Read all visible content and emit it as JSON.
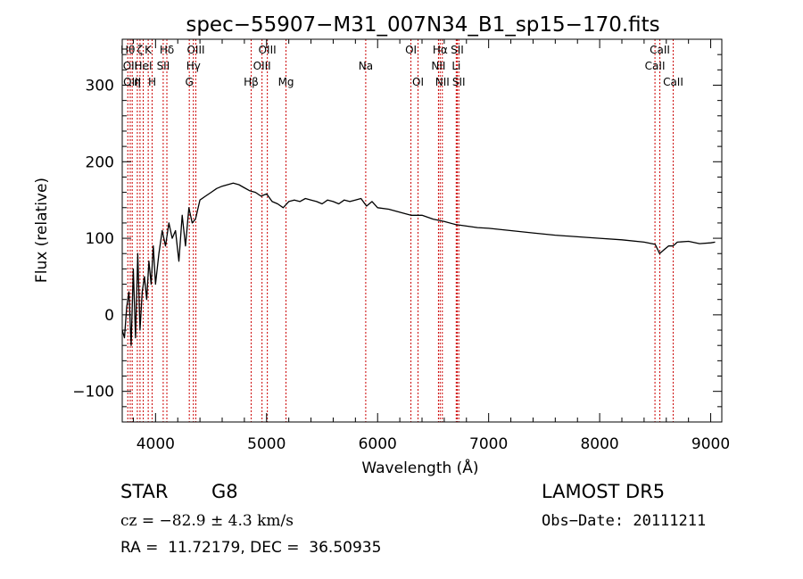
{
  "chart_data": {
    "type": "line",
    "title": "spec−55907−M31_007N34_B1_sp15−170.fits",
    "xlabel": "Wavelength (Å)",
    "ylabel": "Flux (relative)",
    "xlim": [
      3700,
      9100
    ],
    "ylim": [
      -140,
      360
    ],
    "xticks": [
      4000,
      5000,
      6000,
      7000,
      8000,
      9000
    ],
    "yticks": [
      -100,
      0,
      100,
      200,
      300
    ],
    "grid": false,
    "legend": "none",
    "line_color": "#000000",
    "marker_color": "#cc0000",
    "series": [
      {
        "x": [
          3700,
          3720,
          3740,
          3760,
          3780,
          3800,
          3820,
          3840,
          3860,
          3880,
          3900,
          3920,
          3940,
          3960,
          3980,
          4000,
          4030,
          4060,
          4090,
          4120,
          4150,
          4180,
          4210,
          4240,
          4270,
          4300,
          4330,
          4360,
          4400,
          4450,
          4500,
          4550,
          4600,
          4650,
          4700,
          4750,
          4800,
          4850,
          4900,
          4950,
          5000,
          5050,
          5100,
          5150,
          5200,
          5250,
          5300,
          5350,
          5400,
          5450,
          5500,
          5550,
          5600,
          5650,
          5700,
          5750,
          5800,
          5850,
          5900,
          5950,
          6000,
          6100,
          6200,
          6300,
          6400,
          6500,
          6600,
          6700,
          6800,
          6900,
          7000,
          7200,
          7400,
          7600,
          7800,
          8000,
          8200,
          8400,
          8500,
          8540,
          8580,
          8620,
          8660,
          8700,
          8800,
          8900,
          9000,
          9040
        ],
        "y": [
          -20,
          -30,
          10,
          30,
          -40,
          60,
          -30,
          80,
          -20,
          30,
          50,
          20,
          70,
          40,
          90,
          40,
          80,
          110,
          90,
          120,
          100,
          110,
          70,
          130,
          90,
          140,
          120,
          125,
          150,
          155,
          160,
          165,
          168,
          170,
          172,
          170,
          166,
          162,
          160,
          155,
          158,
          148,
          145,
          140,
          148,
          150,
          148,
          152,
          150,
          148,
          145,
          150,
          148,
          145,
          150,
          148,
          150,
          152,
          142,
          148,
          140,
          138,
          134,
          130,
          130,
          125,
          122,
          118,
          116,
          114,
          113,
          110,
          107,
          104,
          102,
          100,
          98,
          95,
          92,
          80,
          85,
          90,
          90,
          95,
          96,
          93,
          94,
          95
        ]
      }
    ],
    "lines": [
      {
        "wl": 3750,
        "label": "Hθ",
        "row": 0
      },
      {
        "wl": 3772,
        "label": "OII",
        "row": 1
      },
      {
        "wl": 3790,
        "label": "OIII",
        "row": 2
      },
      {
        "wl": 3836,
        "label": "η",
        "row": 2
      },
      {
        "wl": 3860,
        "label": "ζ",
        "row": 0
      },
      {
        "wl": 3889,
        "label": "HeI",
        "row": 1
      },
      {
        "wl": 3934,
        "label": "K",
        "row": 0
      },
      {
        "wl": 3969,
        "label": "H",
        "row": 2
      },
      {
        "wl": 4069,
        "label": "SII",
        "row": 1
      },
      {
        "wl": 4102,
        "label": "Hδ",
        "row": 0
      },
      {
        "wl": 4304,
        "label": "G",
        "row": 2
      },
      {
        "wl": 4341,
        "label": "Hγ",
        "row": 1
      },
      {
        "wl": 4363,
        "label": "OIII",
        "row": 0
      },
      {
        "wl": 4861,
        "label": "Hβ",
        "row": 2
      },
      {
        "wl": 4959,
        "label": "OIII",
        "row": 1
      },
      {
        "wl": 5007,
        "label": "OIII",
        "row": 0
      },
      {
        "wl": 5175,
        "label": "Mg",
        "row": 2
      },
      {
        "wl": 5893,
        "label": "Na",
        "row": 1
      },
      {
        "wl": 6300,
        "label": "OI",
        "row": 0
      },
      {
        "wl": 6364,
        "label": "OI",
        "row": 2
      },
      {
        "wl": 6548,
        "label": "NII",
        "row": 1
      },
      {
        "wl": 6563,
        "label": "Hα",
        "row": 0
      },
      {
        "wl": 6583,
        "label": "NII",
        "row": 2
      },
      {
        "wl": 6708,
        "label": "Li",
        "row": 1
      },
      {
        "wl": 6717,
        "label": "SII",
        "row": 0
      },
      {
        "wl": 6731,
        "label": "SII",
        "row": 2
      },
      {
        "wl": 8498,
        "label": "CaII",
        "row": 1
      },
      {
        "wl": 8542,
        "label": "CaII",
        "row": 0
      },
      {
        "wl": 8662,
        "label": "CaII",
        "row": 2
      }
    ]
  },
  "info": {
    "class": "STAR",
    "subclass": "G8",
    "survey": "LAMOST DR5",
    "cz": "cz = −82.9 ± 4.3 km/s",
    "obs_date": "Obs−Date: 20111211",
    "radec": "RA =  11.72179, DEC =  36.50935"
  }
}
